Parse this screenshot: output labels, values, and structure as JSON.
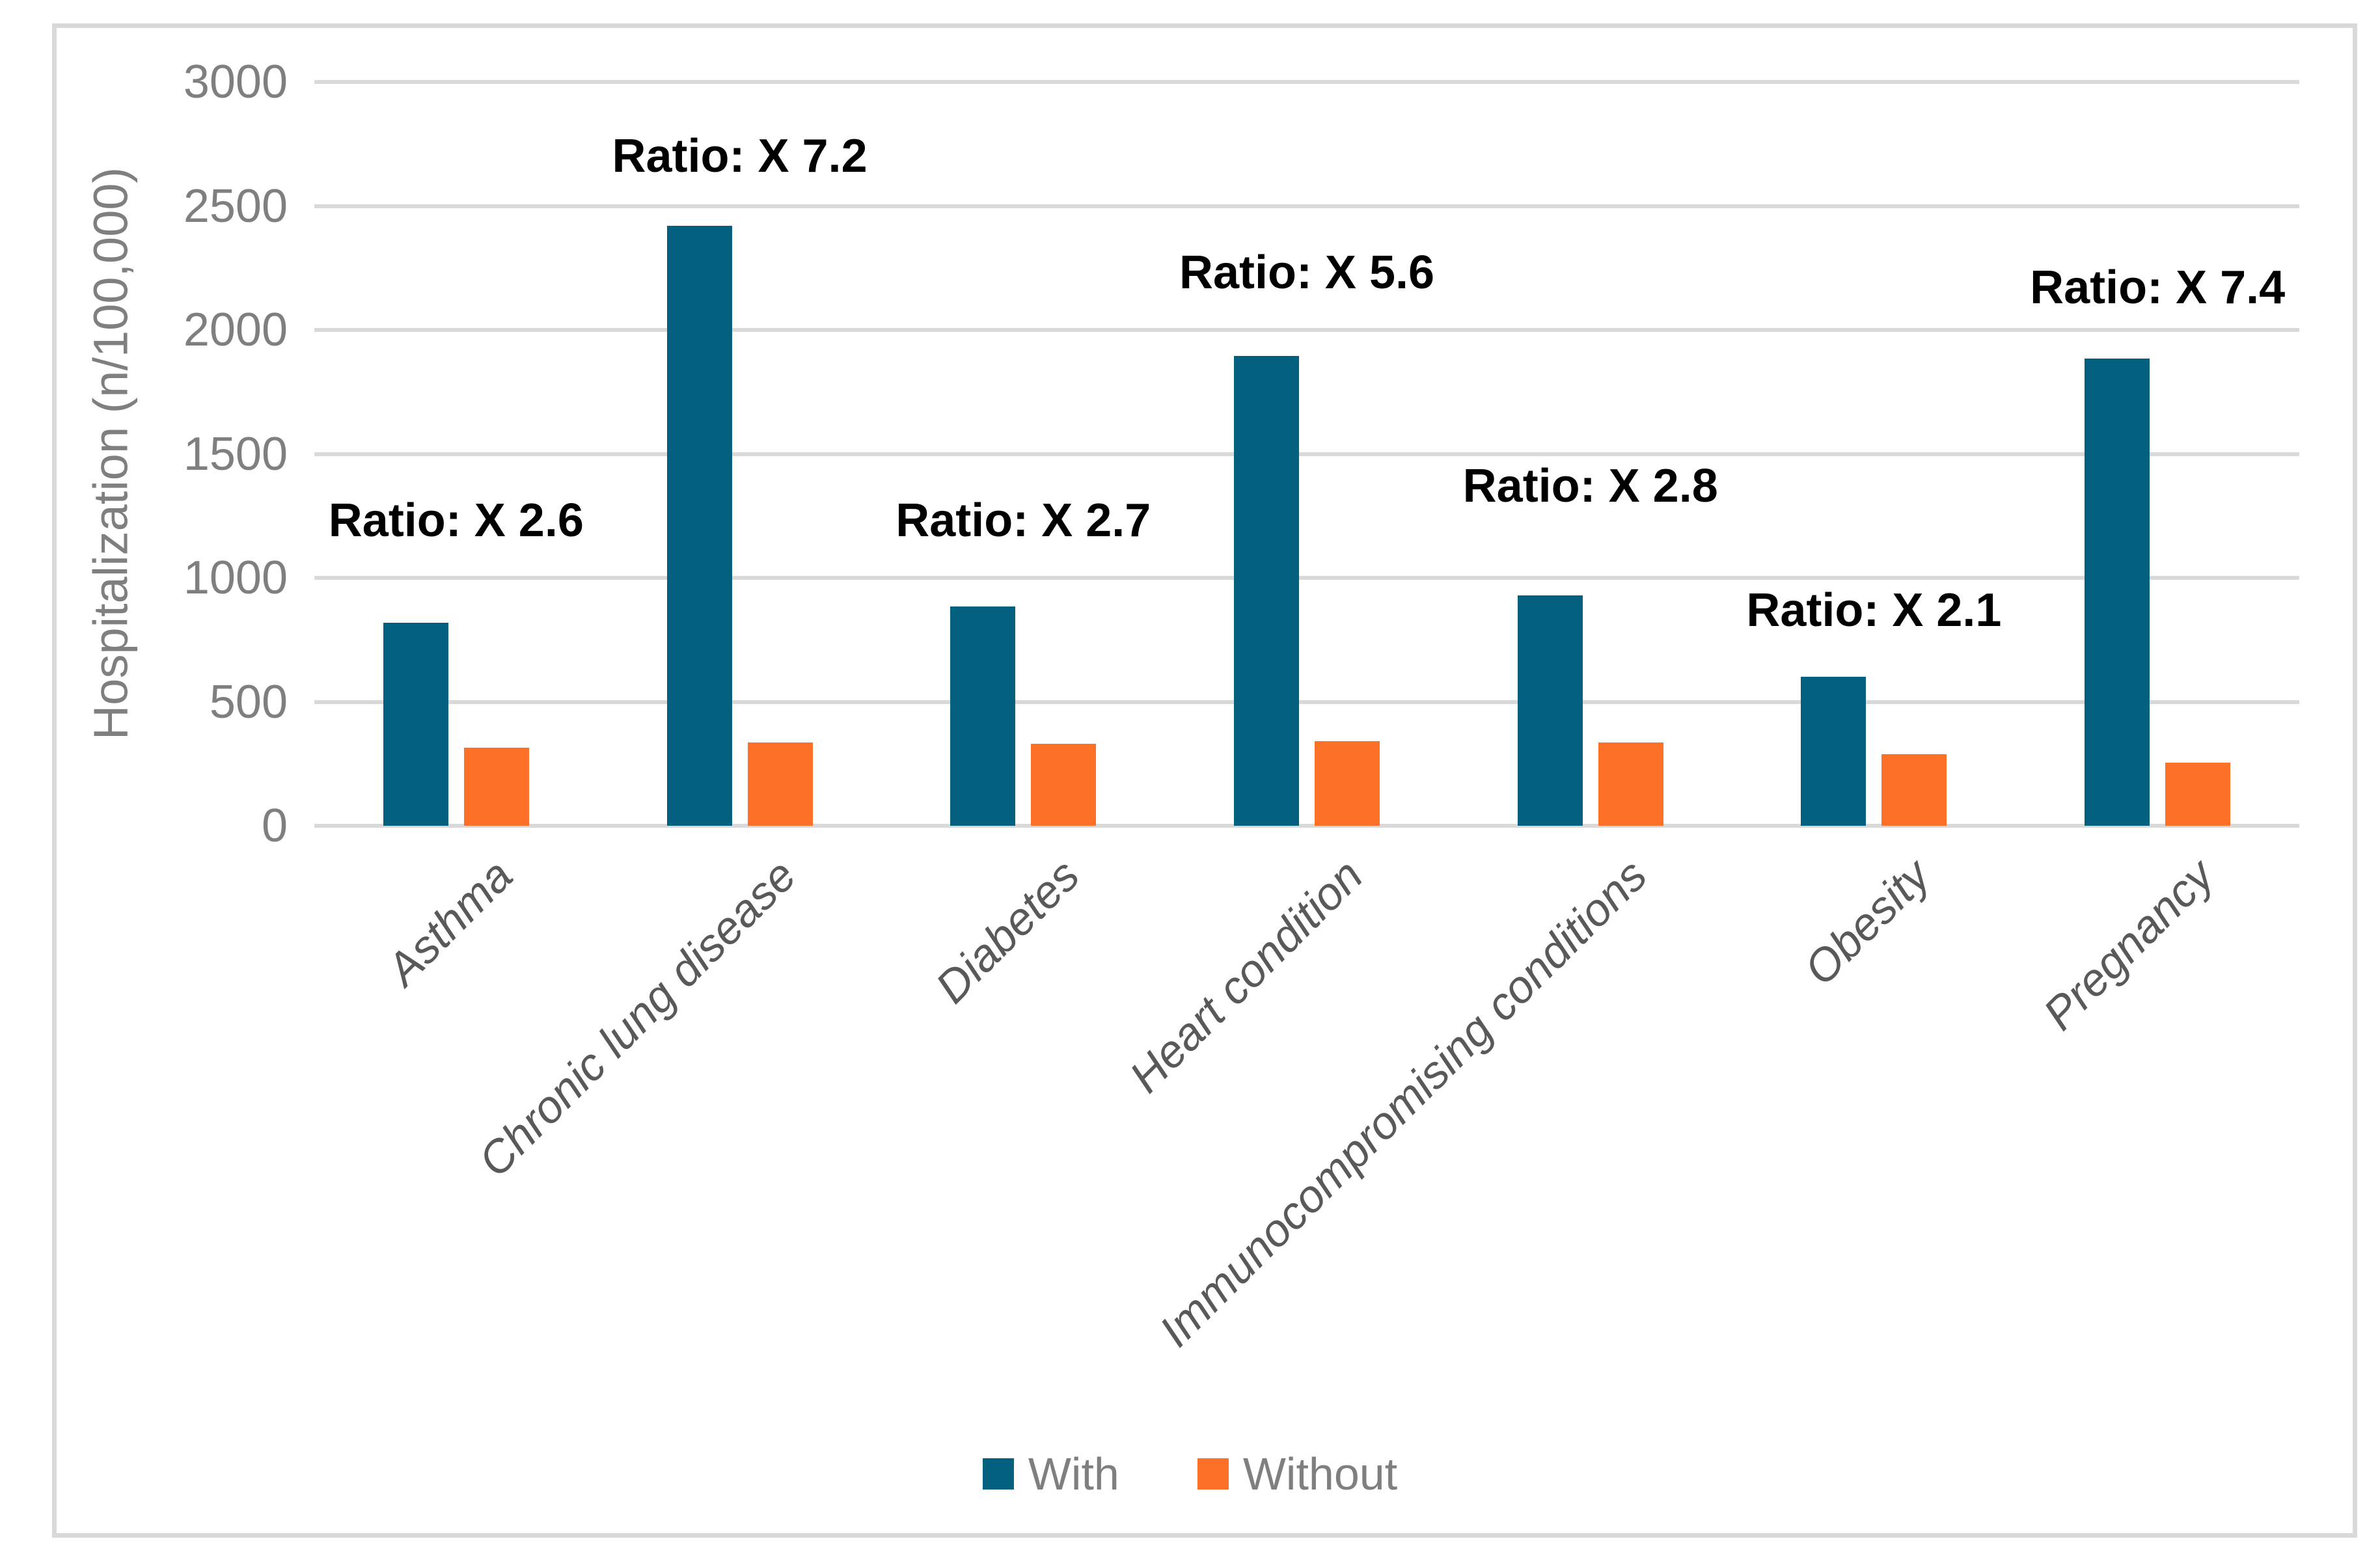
{
  "page": {
    "background": "#FFFFFF",
    "border_color": "#D9D9D9"
  },
  "chart_data": {
    "type": "bar",
    "title": "",
    "xlabel": "",
    "ylabel": "Hospitalization (n/100,000)",
    "ylim": [
      0,
      3000
    ],
    "yticks": [
      0,
      500,
      1000,
      1500,
      2000,
      2500,
      3000
    ],
    "grid": "horizontal",
    "gridline_color": "#D9D9D9",
    "axis_text_color": "#7F7F7F",
    "category_text_color": "#595959",
    "annotation_text_color": "#000000",
    "legend_position": "bottom-center",
    "categories": [
      "Asthma",
      "Chronic lung disease",
      "Diabetes",
      "Heart condition",
      "Immunocompromising conditions",
      "Obesity",
      "Pregnancy"
    ],
    "series": [
      {
        "name": "With",
        "color": "#04607F",
        "values": [
          820,
          2420,
          885,
          1895,
          930,
          600,
          1885
        ]
      },
      {
        "name": "Without",
        "color": "#FC7127",
        "values": [
          315,
          335,
          330,
          340,
          335,
          290,
          255
        ]
      }
    ],
    "annotations": [
      {
        "text": "Ratio: X 2.6",
        "category_index": 0,
        "y": 1230
      },
      {
        "text": "Ratio: X 7.2",
        "category_index": 1,
        "y": 2700
      },
      {
        "text": "Ratio: X 2.7",
        "category_index": 2,
        "y": 1230
      },
      {
        "text": "Ratio: X 5.6",
        "category_index": 3,
        "y": 2230
      },
      {
        "text": "Ratio: X 2.8",
        "category_index": 4,
        "y": 1370
      },
      {
        "text": "Ratio: X 2.1",
        "category_index": 5,
        "y": 870
      },
      {
        "text": "Ratio: X 7.4",
        "category_index": 6,
        "y": 2170
      }
    ]
  },
  "legend": {
    "items": [
      {
        "label": "With",
        "color": "#04607F"
      },
      {
        "label": "Without",
        "color": "#FC7127"
      }
    ]
  }
}
